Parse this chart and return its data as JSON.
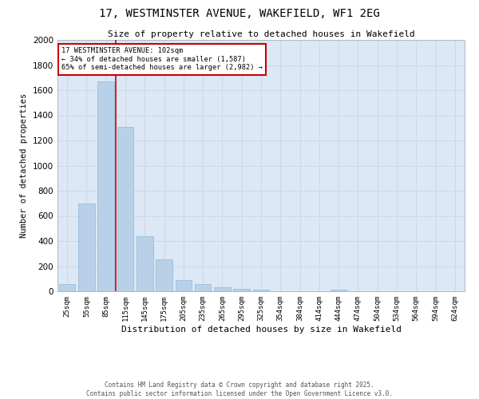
{
  "title": "17, WESTMINSTER AVENUE, WAKEFIELD, WF1 2EG",
  "subtitle": "Size of property relative to detached houses in Wakefield",
  "xlabel": "Distribution of detached houses by size in Wakefield",
  "ylabel": "Number of detached properties",
  "footer_line1": "Contains HM Land Registry data © Crown copyright and database right 2025.",
  "footer_line2": "Contains public sector information licensed under the Open Government Licence v3.0.",
  "categories": [
    "25sqm",
    "55sqm",
    "85sqm",
    "115sqm",
    "145sqm",
    "175sqm",
    "205sqm",
    "235sqm",
    "265sqm",
    "295sqm",
    "325sqm",
    "354sqm",
    "384sqm",
    "414sqm",
    "444sqm",
    "474sqm",
    "504sqm",
    "534sqm",
    "564sqm",
    "594sqm",
    "624sqm"
  ],
  "values": [
    60,
    700,
    1670,
    1310,
    440,
    255,
    90,
    55,
    30,
    22,
    15,
    0,
    0,
    0,
    12,
    0,
    0,
    0,
    0,
    0,
    0
  ],
  "bar_color": "#b8d0e8",
  "bar_edge_color": "#90b8d8",
  "grid_color": "#d0d8e8",
  "background_color": "#dce8f5",
  "fig_background": "#ffffff",
  "vline_bin_index": 2,
  "vline_color": "#cc0000",
  "annotation_text": "17 WESTMINSTER AVENUE: 102sqm\n← 34% of detached houses are smaller (1,587)\n65% of semi-detached houses are larger (2,982) →",
  "annotation_box_color": "#cc0000",
  "ylim": [
    0,
    2000
  ],
  "yticks": [
    0,
    200,
    400,
    600,
    800,
    1000,
    1200,
    1400,
    1600,
    1800,
    2000
  ]
}
